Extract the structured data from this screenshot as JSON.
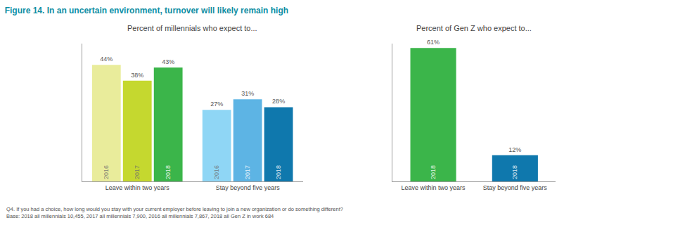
{
  "title": "Figure 14. In an uncertain environment, turnover will likely remain high",
  "notes": [
    "Q4. If you had a choice, how long would you stay with your current employer before leaving to join a new organization or do something different?",
    "Base: 2018 all millennials 10,455, 2017 all millennials 7,900, 2016 all millennials 7,867, 2018 all Gen Z in work 684"
  ],
  "chart_data": [
    {
      "type": "bar",
      "title": "Percent of millennials who expect to...",
      "categories": [
        "Leave within two years",
        "Stay beyond five years"
      ],
      "series": [
        {
          "name": "2016",
          "colors": [
            "#e9ec9b",
            "#8fd6f5"
          ],
          "values": [
            44,
            27
          ],
          "value_labels": [
            "44%",
            "27%"
          ]
        },
        {
          "name": "2017",
          "colors": [
            "#c5d82f",
            "#5db4e4"
          ],
          "values": [
            38,
            31
          ],
          "value_labels": [
            "38%",
            "31%"
          ]
        },
        {
          "name": "2018",
          "colors": [
            "#3bb54a",
            "#0f78ad"
          ],
          "values": [
            43,
            28
          ],
          "value_labels": [
            "43%",
            "28%"
          ]
        }
      ],
      "ylim": [
        0,
        52
      ],
      "yticks": [],
      "grid": false,
      "data_labels": true,
      "tick_labels": "x"
    },
    {
      "type": "bar",
      "title": "Percent of Gen Z who expect to...",
      "categories": [
        "Leave within two years",
        "Stay beyond five years"
      ],
      "series": [
        {
          "name": "2018",
          "colors": [
            "#3bb54a",
            "#0f78ad"
          ],
          "values": [
            61,
            12
          ],
          "value_labels": [
            "61%",
            "12%"
          ]
        }
      ],
      "ylim": [
        0,
        63
      ],
      "yticks": [],
      "grid": false,
      "data_labels": true,
      "tick_labels": "x"
    }
  ]
}
